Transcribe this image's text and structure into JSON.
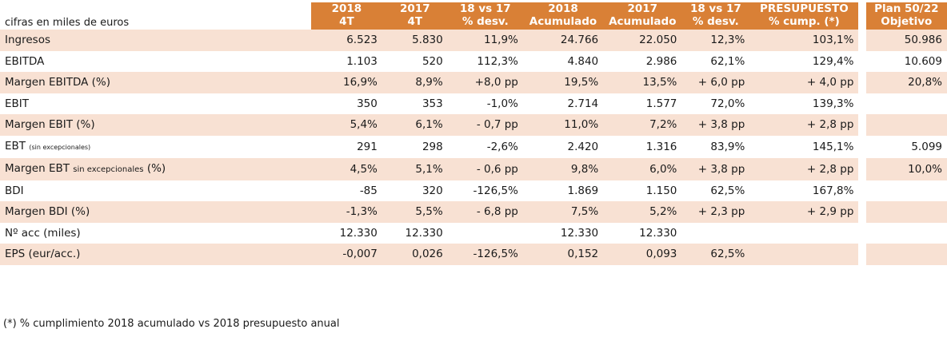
{
  "header": {
    "units_label": "cifras en miles de euros",
    "columns": [
      {
        "line1": "2018",
        "line2": "4T"
      },
      {
        "line1": "2017",
        "line2": "4T"
      },
      {
        "line1": "18 vs 17",
        "line2": "% desv."
      },
      {
        "line1": "2018",
        "line2": "Acumulado"
      },
      {
        "line1": "2017",
        "line2": "Acumulado"
      },
      {
        "line1": "18 vs 17",
        "line2": "% desv."
      },
      {
        "line1": "PRESUPUESTO",
        "line2": "% cump.  (*)"
      },
      {
        "line1": "Plan 50/22",
        "line2": "Objetivo"
      }
    ]
  },
  "rows": [
    {
      "label": "Ingresos",
      "values": [
        "6.523",
        "5.830",
        "11,9%",
        "24.766",
        "22.050",
        "12,3%",
        "103,1%",
        "50.986"
      ]
    },
    {
      "label": "EBITDA",
      "values": [
        "1.103",
        "520",
        "112,3%",
        "4.840",
        "2.986",
        "62,1%",
        "129,4%",
        "10.609"
      ]
    },
    {
      "label": "Margen EBITDA (%)",
      "values": [
        "16,9%",
        "8,9%",
        "+8,0 pp",
        "19,5%",
        "13,5%",
        "+ 6,0 pp",
        "+ 4,0 pp",
        "20,8%"
      ]
    },
    {
      "label": "EBIT",
      "values": [
        "350",
        "353",
        "-1,0%",
        "2.714",
        "1.577",
        "72,0%",
        "139,3%",
        ""
      ]
    },
    {
      "label": "Margen EBIT (%)",
      "values": [
        "5,4%",
        "6,1%",
        "- 0,7 pp",
        "11,0%",
        "7,2%",
        "+ 3,8 pp",
        "+ 2,8 pp",
        ""
      ]
    },
    {
      "label": "EBT",
      "label_sub": "(sin excepcionales)",
      "values": [
        "291",
        "298",
        "-2,6%",
        "2.420",
        "1.316",
        "83,9%",
        "145,1%",
        "5.099"
      ]
    },
    {
      "label": "Margen EBT",
      "label_sub": "sin excepcionales",
      "label_tail": "(%)",
      "values": [
        "4,5%",
        "5,1%",
        "- 0,6 pp",
        "9,8%",
        "6,0%",
        "+ 3,8 pp",
        "+ 2,8 pp",
        "10,0%"
      ]
    },
    {
      "label": "BDI",
      "values": [
        "-85",
        "320",
        "-126,5%",
        "1.869",
        "1.150",
        "62,5%",
        "167,8%",
        ""
      ]
    },
    {
      "label": "Margen BDI (%)",
      "values": [
        "-1,3%",
        "5,5%",
        "- 6,8 pp",
        "7,5%",
        "5,2%",
        "+ 2,3 pp",
        "+ 2,9 pp",
        ""
      ]
    },
    {
      "label": "Nº acc (miles)",
      "values": [
        "12.330",
        "12.330",
        "",
        "12.330",
        "12.330",
        "",
        "",
        ""
      ]
    },
    {
      "label": "EPS (eur/acc.)",
      "values": [
        "-0,007",
        "0,026",
        "-126,5%",
        "0,152",
        "0,093",
        "62,5%",
        "",
        ""
      ]
    }
  ],
  "footnote": "(*) % cumplimiento 2018 acumulado vs 2018 presupuesto anual",
  "colors": {
    "header_bg": "#d98036",
    "row_shade": "#f8e1d3"
  }
}
